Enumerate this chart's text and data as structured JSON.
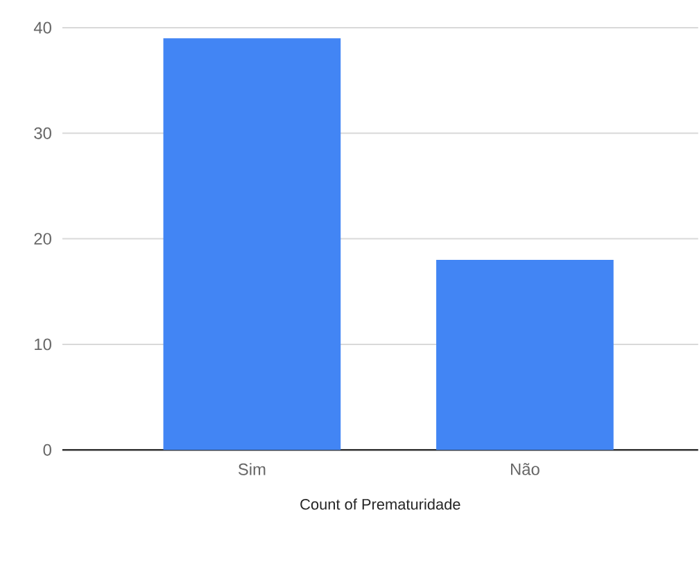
{
  "chart_data": {
    "type": "bar",
    "categories": [
      "Sim",
      "Não"
    ],
    "values": [
      39,
      18
    ],
    "color": "#4285f4",
    "xlabel": "Count of Prematuridade",
    "ylim": [
      0,
      40
    ],
    "yticks": [
      0,
      10,
      20,
      30,
      40
    ],
    "grid": "y"
  }
}
